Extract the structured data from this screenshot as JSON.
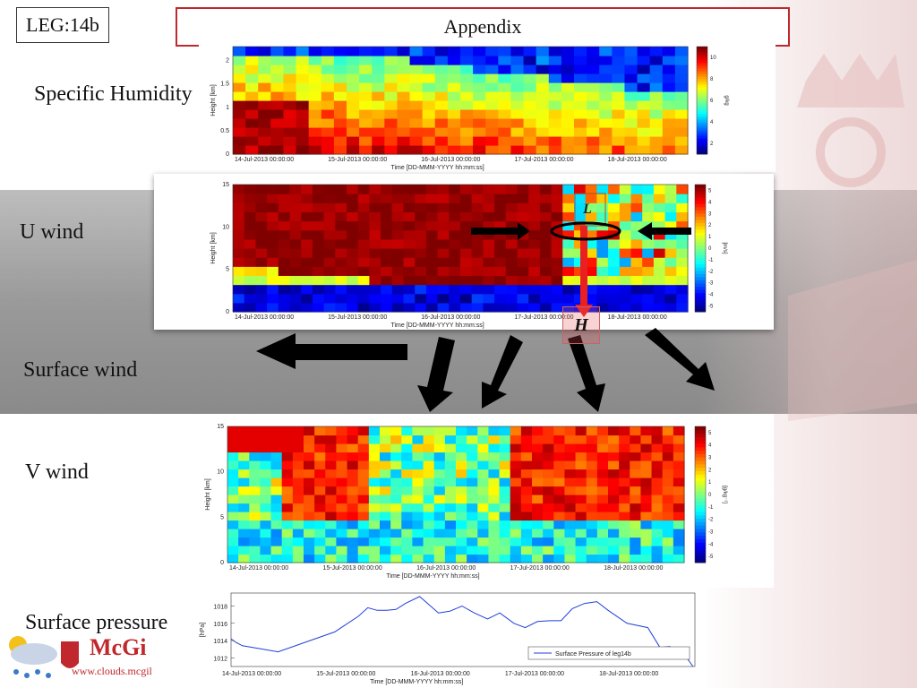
{
  "slide": {
    "leg_label": "LEG:14b",
    "title": "Appendix"
  },
  "side_labels": {
    "humidity": "Specific Humidity",
    "u_wind": "U wind",
    "surface_wind": "Surface wind",
    "v_wind": "V wind",
    "surface_pressure": "Surface pressure"
  },
  "logo": {
    "name": "McGi",
    "url": "www.clouds.mcgil"
  },
  "annotations": {
    "low": "L",
    "high": "H"
  },
  "colors": {
    "title_border": "#c0282d",
    "series_line": "#1f3fd8"
  },
  "chart_data": [
    {
      "type": "heatmap",
      "ylabel": "Height [km]",
      "xlabel": "Time [DD-MMM-YYYY hh:mm:ss]",
      "xticks": [
        "14-Jul-2013 00:00:00",
        "15-Jul-2013 00:00:00",
        "16-Jul-2013 00:00:00",
        "17-Jul-2013 00:00:00",
        "18-Jul-2013 00:00:00"
      ],
      "yticks": [
        "0",
        "0.5",
        "1",
        "1.5",
        "2"
      ],
      "colorbar_ticks": [
        "2",
        "4",
        "6",
        "8",
        "10"
      ],
      "colorbar_unit": "g/kg",
      "ylim": [
        0,
        2.3
      ]
    },
    {
      "type": "heatmap",
      "ylabel": "Height [km]",
      "xlabel": "Time [DD-MMM-YYYY hh:mm:ss]",
      "xticks": [
        "14-Jul-2013 00:00:00",
        "15-Jul-2013 00:00:00",
        "16-Jul-2013 00:00:00",
        "17-Jul-2013 00:00:00",
        "18-Jul-2013 00:00:00"
      ],
      "yticks": [
        "0",
        "5",
        "10",
        "15"
      ],
      "colorbar_ticks": [
        "-5",
        "-4",
        "-3",
        "-2",
        "-1",
        "0",
        "1",
        "2",
        "3",
        "4",
        "5"
      ],
      "colorbar_unit": "[m/s]",
      "ylim": [
        0,
        15
      ]
    },
    {
      "type": "heatmap",
      "ylabel": "Height [km]",
      "xlabel": "Time [DD-MMM-YYYY hh:mm:ss]",
      "xticks": [
        "14-Jul-2013 00:00:00",
        "15-Jul-2013 00:00:00",
        "16-Jul-2013 00:00:00",
        "17-Jul-2013 00:00:00",
        "18-Jul-2013 00:00:00"
      ],
      "yticks": [
        "0",
        "5",
        "10",
        "15"
      ],
      "colorbar_ticks": [
        "-5",
        "-4",
        "-3",
        "-2",
        "-1",
        "0",
        "1",
        "2",
        "3",
        "4",
        "5"
      ],
      "colorbar_unit": "[g/kg⁻¹]",
      "ylim": [
        0,
        15
      ]
    },
    {
      "type": "line",
      "ylabel": "[hPa]",
      "xlabel": "Time [DD-MMM-YYYY hh:mm:ss]",
      "xticks": [
        "14-Jul-2013 00:00:00",
        "15-Jul-2013 00:00:00",
        "16-Jul-2013 00:00:00",
        "17-Jul-2013 00:00:00",
        "18-Jul-2013 00:00:00"
      ],
      "yticks": [
        "1012",
        "1014",
        "1016",
        "1018"
      ],
      "ylim": [
        1011,
        1019.5
      ],
      "xlim": [
        0,
        4.92
      ],
      "series": [
        {
          "name": "Surface Pressure of leg14b",
          "x": [
            0,
            0.05,
            0.12,
            0.5,
            1.1,
            1.35,
            1.45,
            1.55,
            1.65,
            1.75,
            1.85,
            2.0,
            2.2,
            2.32,
            2.45,
            2.58,
            2.72,
            2.85,
            3.0,
            3.12,
            3.25,
            3.38,
            3.5,
            3.62,
            3.75,
            3.88,
            4.0,
            4.2,
            4.42,
            4.55,
            4.65,
            4.78,
            4.9
          ],
          "y": [
            1014.2,
            1013.8,
            1013.4,
            1012.7,
            1015.0,
            1016.8,
            1017.8,
            1017.5,
            1017.5,
            1017.6,
            1018.3,
            1019.1,
            1017.2,
            1017.4,
            1018.0,
            1017.2,
            1016.5,
            1017.2,
            1016.0,
            1015.5,
            1016.2,
            1016.3,
            1016.3,
            1017.7,
            1018.3,
            1018.5,
            1017.5,
            1016.0,
            1015.5,
            1013.2,
            1013.3,
            1012.8,
            1011.0
          ]
        }
      ]
    }
  ]
}
